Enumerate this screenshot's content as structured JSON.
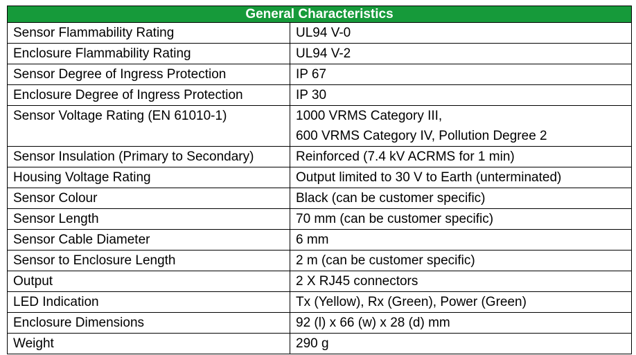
{
  "table": {
    "title": "General Characteristics",
    "rows": [
      {
        "label": "Sensor Flammability Rating",
        "value": [
          "UL94 V-0"
        ]
      },
      {
        "label": "Enclosure Flammability Rating",
        "value": [
          "UL94 V-2"
        ]
      },
      {
        "label": "Sensor Degree of Ingress Protection",
        "value": [
          "IP 67"
        ]
      },
      {
        "label": "Enclosure Degree of Ingress Protection",
        "value": [
          "IP 30"
        ]
      },
      {
        "label": "Sensor Voltage Rating (EN 61010-1)",
        "value": [
          "1000 VRMS Category III,",
          "600 VRMS Category IV, Pollution Degree 2"
        ]
      },
      {
        "label": "Sensor Insulation (Primary to Secondary)",
        "value": [
          "Reinforced (7.4 kV ACRMS for 1 min)"
        ]
      },
      {
        "label": "Housing Voltage Rating",
        "value": [
          "Output limited to 30 V to Earth (unterminated)"
        ]
      },
      {
        "label": "Sensor Colour",
        "value": [
          "Black (can be customer specific)"
        ]
      },
      {
        "label": "Sensor Length",
        "value": [
          "70 mm (can be customer specific)"
        ]
      },
      {
        "label": "Sensor Cable Diameter",
        "value": [
          "6 mm"
        ]
      },
      {
        "label": "Sensor to Enclosure Length",
        "value": [
          "2 m (can be customer specific)"
        ]
      },
      {
        "label": "Output",
        "value": [
          "2 X RJ45 connectors"
        ]
      },
      {
        "label": "LED Indication",
        "value": [
          "Tx (Yellow), Rx (Green), Power (Green)"
        ]
      },
      {
        "label": "Enclosure Dimensions",
        "value": [
          "92 (l) x 66 (w) x 28 (d) mm"
        ]
      },
      {
        "label": "Weight",
        "value": [
          "290 g"
        ]
      }
    ]
  },
  "colors": {
    "header_background": "#169a3a",
    "header_text": "#ffffff",
    "border": "#000000",
    "text": "#000000"
  }
}
